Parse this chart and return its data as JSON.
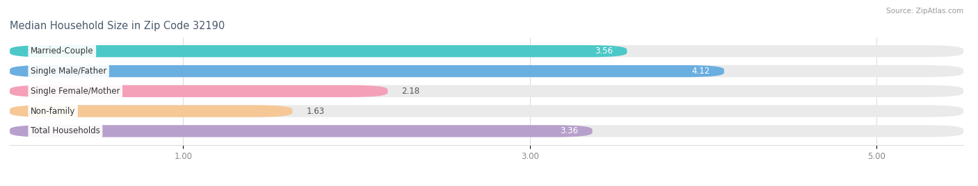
{
  "title": "Median Household Size in Zip Code 32190",
  "source": "Source: ZipAtlas.com",
  "categories": [
    "Married-Couple",
    "Single Male/Father",
    "Single Female/Mother",
    "Non-family",
    "Total Households"
  ],
  "values": [
    3.56,
    4.12,
    2.18,
    1.63,
    3.36
  ],
  "bar_colors": [
    "#4DC8C8",
    "#6BAEE0",
    "#F4A0B8",
    "#F5C896",
    "#B8A0CC"
  ],
  "bar_bg_color": "#EAEAEA",
  "value_white_threshold": 2.5,
  "xlim_left": 0.0,
  "xlim_right": 5.5,
  "xticks": [
    1.0,
    3.0,
    5.0
  ],
  "label_fontsize": 8.5,
  "value_fontsize": 8.5,
  "title_fontsize": 10.5,
  "bar_height": 0.6,
  "bar_gap": 0.15,
  "background_color": "#ffffff",
  "title_color": "#4a5a6a",
  "source_color": "#999999",
  "tick_color": "#888888"
}
